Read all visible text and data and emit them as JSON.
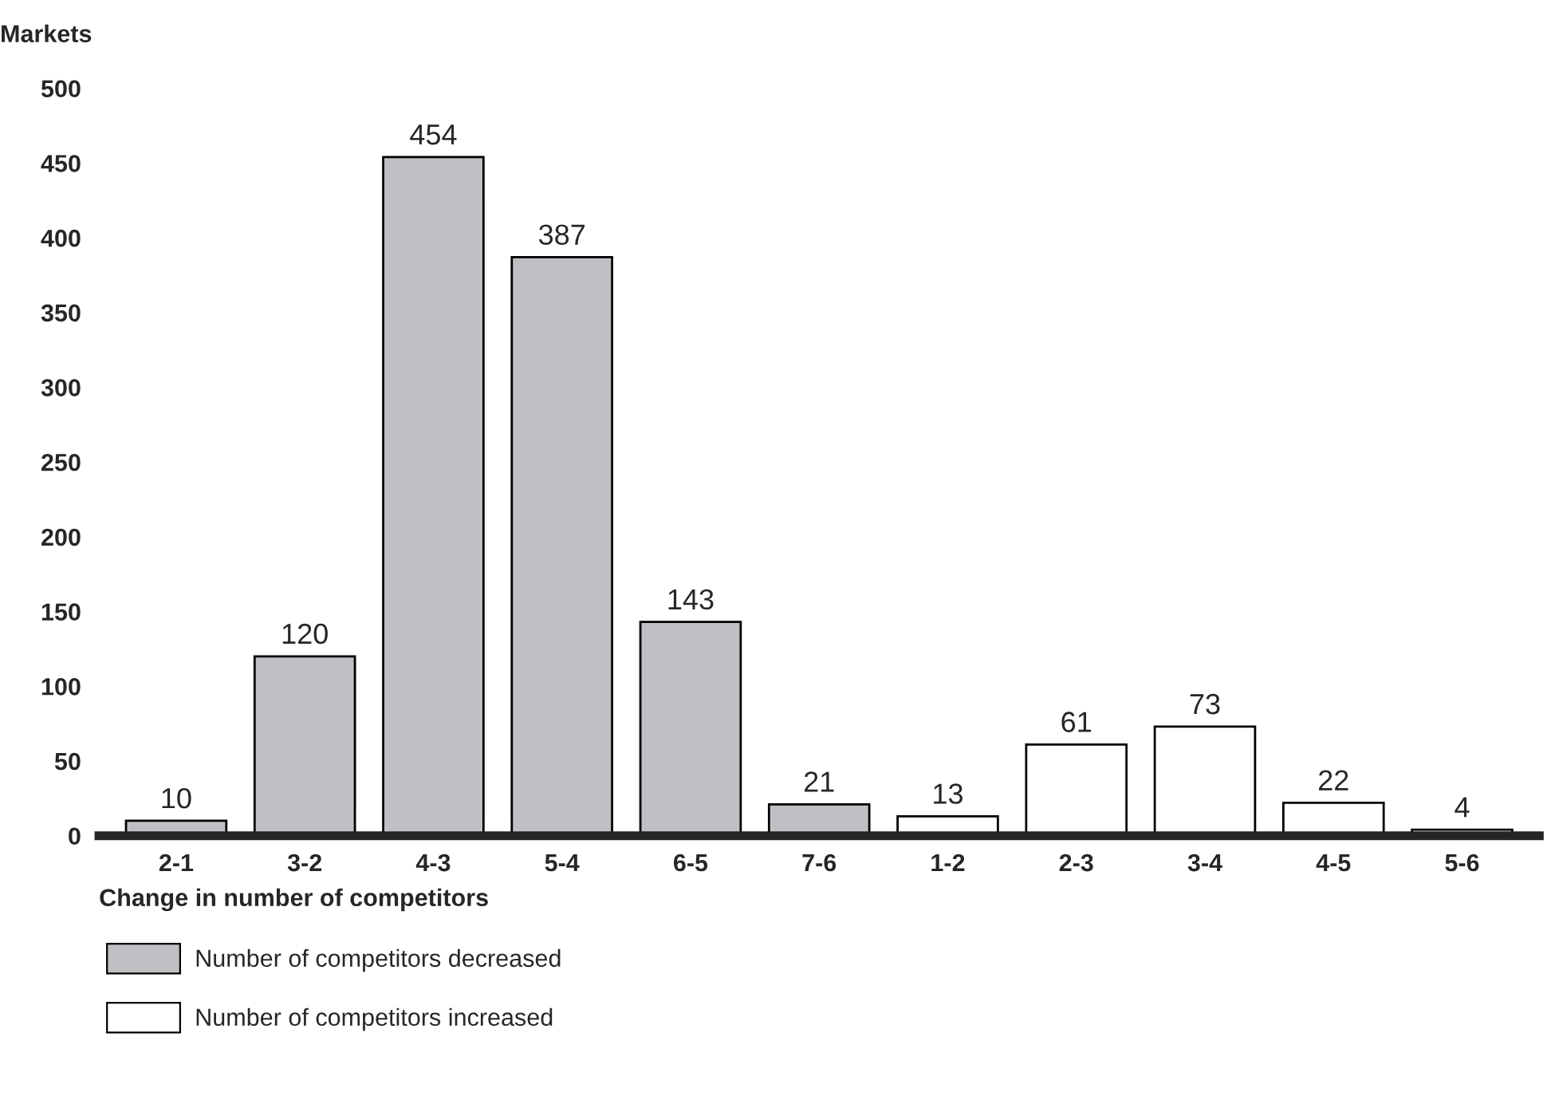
{
  "chart_data": {
    "type": "bar",
    "ylabel": "Markets",
    "xlabel": "Change in number of competitors",
    "categories": [
      "2-1",
      "3-2",
      "4-3",
      "5-4",
      "6-5",
      "7-6",
      "1-2",
      "2-3",
      "3-4",
      "4-5",
      "5-6"
    ],
    "series": [
      {
        "name": "Number of competitors decreased",
        "color": "#c0c0c4",
        "values": [
          10,
          120,
          454,
          387,
          143,
          21,
          null,
          null,
          null,
          null,
          null
        ]
      },
      {
        "name": "Number of competitors increased",
        "color": "#ffffff",
        "values": [
          null,
          null,
          null,
          null,
          null,
          null,
          13,
          61,
          73,
          22,
          4
        ]
      }
    ],
    "ylim": [
      0,
      500
    ],
    "yticks": [
      0,
      50,
      100,
      150,
      200,
      250,
      300,
      350,
      400,
      450,
      500
    ],
    "data_labels": true,
    "grid": false,
    "legend": "bottom left"
  }
}
